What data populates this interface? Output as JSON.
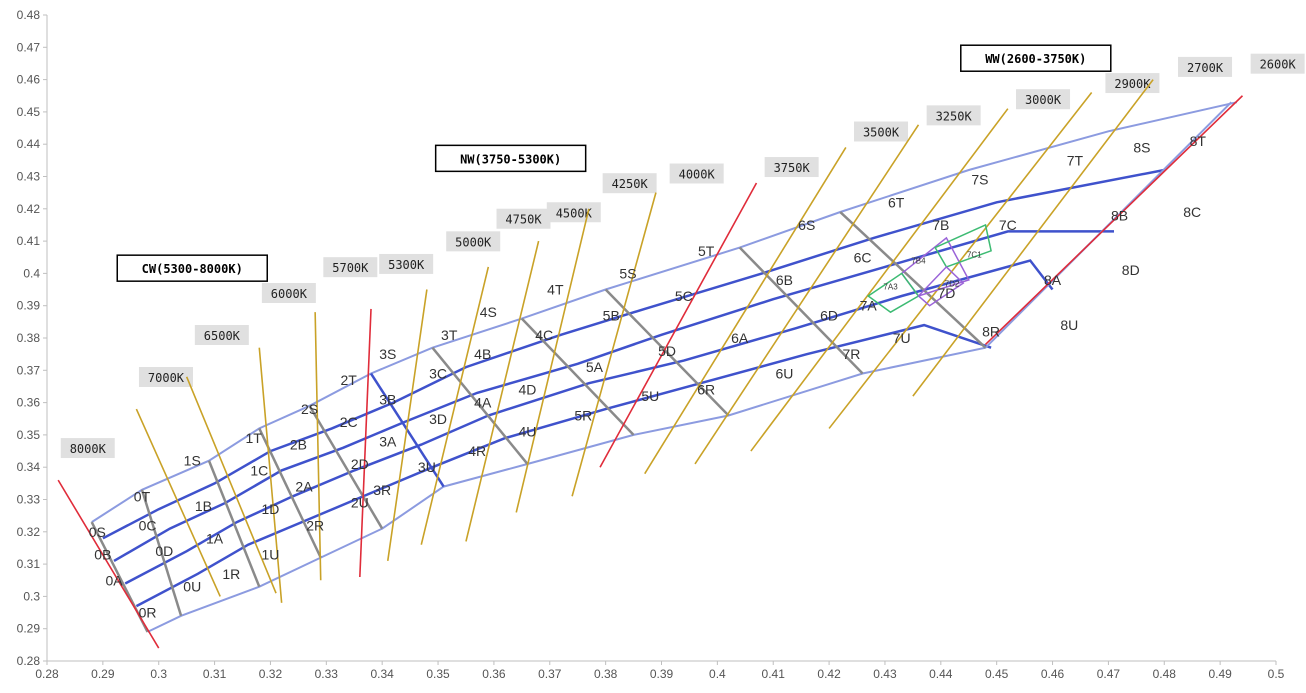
{
  "chart_data": {
    "type": "diagram-xy",
    "xlim": [
      0.28,
      0.5
    ],
    "ylim": [
      0.28,
      0.48
    ],
    "x_ticks": [
      "0.28",
      "0.29",
      "0.3",
      "0.31",
      "0.32",
      "0.33",
      "0.34",
      "0.35",
      "0.36",
      "0.37",
      "0.38",
      "0.39",
      "0.4",
      "0.41",
      "0.42",
      "0.43",
      "0.44",
      "0.45",
      "0.46",
      "0.47",
      "0.48",
      "0.49",
      "0.5"
    ],
    "y_ticks": [
      "0.28",
      "0.29",
      "0.3",
      "0.31",
      "0.32",
      "0.33",
      "0.34",
      "0.35",
      "0.36",
      "0.37",
      "0.38",
      "0.39",
      "0.4",
      "0.41",
      "0.42",
      "0.43",
      "0.44",
      "0.45",
      "0.46",
      "0.47",
      "0.48"
    ],
    "grid": false,
    "colors": {
      "boundary": "#8c9be0",
      "mid_curve": "#3f52cc",
      "cct_line": "#c9a227",
      "cct_red": "#e02c3a",
      "cct_purple": "#9a2c8e",
      "sub_bin_green": "#3dbb73",
      "sub_bin_purple": "#9a63d8",
      "divider_gray": "#8a8a8a",
      "label_bg": "#e0e0e0"
    },
    "loci": [
      {
        "role": "top",
        "points": [
          [
            0.288,
            0.323
          ],
          [
            0.297,
            0.333
          ],
          [
            0.309,
            0.342
          ],
          [
            0.318,
            0.352
          ],
          [
            0.327,
            0.359
          ],
          [
            0.338,
            0.369
          ],
          [
            0.349,
            0.377
          ],
          [
            0.365,
            0.386
          ],
          [
            0.38,
            0.395
          ],
          [
            0.404,
            0.408
          ],
          [
            0.422,
            0.419
          ],
          [
            0.445,
            0.432
          ],
          [
            0.47,
            0.444
          ],
          [
            0.493,
            0.453
          ]
        ]
      },
      {
        "role": "mid",
        "points": [
          [
            0.29,
            0.318
          ],
          [
            0.3,
            0.327
          ],
          [
            0.31,
            0.335
          ],
          [
            0.32,
            0.345
          ],
          [
            0.331,
            0.352
          ],
          [
            0.342,
            0.36
          ],
          [
            0.355,
            0.371
          ],
          [
            0.372,
            0.381
          ],
          [
            0.387,
            0.389
          ],
          [
            0.408,
            0.4
          ],
          [
            0.428,
            0.411
          ],
          [
            0.45,
            0.422
          ],
          [
            0.48,
            0.432
          ]
        ]
      },
      {
        "role": "mid",
        "points": [
          [
            0.292,
            0.311
          ],
          [
            0.302,
            0.321
          ],
          [
            0.312,
            0.329
          ],
          [
            0.322,
            0.339
          ],
          [
            0.333,
            0.346
          ],
          [
            0.344,
            0.354
          ],
          [
            0.357,
            0.363
          ],
          [
            0.375,
            0.372
          ],
          [
            0.39,
            0.381
          ],
          [
            0.41,
            0.392
          ],
          [
            0.43,
            0.402
          ],
          [
            0.452,
            0.413
          ],
          [
            0.471,
            0.413
          ]
        ]
      },
      {
        "role": "mid",
        "points": [
          [
            0.294,
            0.304
          ],
          [
            0.305,
            0.314
          ],
          [
            0.314,
            0.323
          ],
          [
            0.324,
            0.331
          ],
          [
            0.335,
            0.339
          ],
          [
            0.347,
            0.347
          ],
          [
            0.359,
            0.356
          ],
          [
            0.377,
            0.366
          ],
          [
            0.394,
            0.373
          ],
          [
            0.414,
            0.383
          ],
          [
            0.433,
            0.393
          ],
          [
            0.456,
            0.404
          ],
          [
            0.46,
            0.395
          ]
        ]
      },
      {
        "role": "mid",
        "points": [
          [
            0.296,
            0.297
          ],
          [
            0.307,
            0.307
          ],
          [
            0.316,
            0.316
          ],
          [
            0.327,
            0.324
          ],
          [
            0.338,
            0.332
          ],
          [
            0.349,
            0.34
          ],
          [
            0.362,
            0.349
          ],
          [
            0.38,
            0.358
          ],
          [
            0.397,
            0.366
          ],
          [
            0.416,
            0.375
          ],
          [
            0.437,
            0.384
          ],
          [
            0.449,
            0.377
          ]
        ]
      },
      {
        "role": "bottom",
        "points": [
          [
            0.298,
            0.289
          ],
          [
            0.304,
            0.294
          ],
          [
            0.318,
            0.303
          ],
          [
            0.329,
            0.312
          ],
          [
            0.34,
            0.321
          ],
          [
            0.351,
            0.334
          ],
          [
            0.366,
            0.341
          ],
          [
            0.385,
            0.35
          ],
          [
            0.402,
            0.356
          ],
          [
            0.426,
            0.369
          ],
          [
            0.448,
            0.377
          ],
          [
            0.492,
            0.453
          ]
        ]
      }
    ],
    "cct_lines": [
      {
        "label": "8000K",
        "color": "red",
        "from": [
          0.282,
          0.336
        ],
        "to": [
          0.3,
          0.284
        ],
        "label_at": [
          0.283,
          0.345
        ]
      },
      {
        "label": "7000K",
        "color": "gold",
        "from": [
          0.296,
          0.358
        ],
        "to": [
          0.311,
          0.3
        ],
        "label_at": [
          0.297,
          0.367
        ]
      },
      {
        "label": "6500K",
        "color": "gold",
        "from": [
          0.305,
          0.368
        ],
        "to": [
          0.321,
          0.301
        ],
        "label_at": [
          0.307,
          0.38
        ]
      },
      {
        "label": "6000K",
        "color": "gold",
        "from": [
          0.318,
          0.377
        ],
        "to": [
          0.322,
          0.298
        ],
        "label_at": [
          0.319,
          0.393
        ]
      },
      {
        "label": "5700K",
        "color": "gold",
        "from": [
          0.328,
          0.388
        ],
        "to": [
          0.329,
          0.305
        ],
        "label_at": [
          0.33,
          0.401
        ]
      },
      {
        "label": "5300K",
        "color": "red",
        "from": [
          0.338,
          0.389
        ],
        "to": [
          0.336,
          0.306
        ],
        "label_at": [
          0.34,
          0.402
        ]
      },
      {
        "label": "5000K",
        "color": "gold",
        "from": [
          0.348,
          0.395
        ],
        "to": [
          0.341,
          0.311
        ],
        "label_at": [
          0.352,
          0.409
        ]
      },
      {
        "label": "4750K",
        "color": "gold",
        "from": [
          0.359,
          0.402
        ],
        "to": [
          0.347,
          0.316
        ],
        "label_at": [
          0.361,
          0.416
        ]
      },
      {
        "label": "4500K",
        "color": "gold",
        "from": [
          0.368,
          0.41
        ],
        "to": [
          0.355,
          0.317
        ],
        "label_at": [
          0.37,
          0.418
        ]
      },
      {
        "label": "4250K",
        "color": "gold",
        "from": [
          0.377,
          0.42
        ],
        "to": [
          0.364,
          0.326
        ],
        "label_at": [
          0.38,
          0.427
        ]
      },
      {
        "label": "4000K",
        "color": "gold",
        "from": [
          0.389,
          0.425
        ],
        "to": [
          0.374,
          0.331
        ],
        "label_at": [
          0.392,
          0.43
        ]
      },
      {
        "label": "3750K",
        "color": "red",
        "from": [
          0.407,
          0.428
        ],
        "to": [
          0.379,
          0.34
        ],
        "label_at": [
          0.409,
          0.432
        ]
      },
      {
        "label": "3500K",
        "color": "gold",
        "from": [
          0.423,
          0.439
        ],
        "to": [
          0.387,
          0.338
        ],
        "label_at": [
          0.425,
          0.443
        ]
      },
      {
        "label": "3250K",
        "color": "gold",
        "from": [
          0.436,
          0.446
        ],
        "to": [
          0.396,
          0.341
        ],
        "label_at": [
          0.438,
          0.448
        ]
      },
      {
        "label": "3000K",
        "color": "gold",
        "from": [
          0.452,
          0.451
        ],
        "to": [
          0.406,
          0.345
        ],
        "label_at": [
          0.454,
          0.453
        ]
      },
      {
        "label": "2900K",
        "color": "gold",
        "from": [
          0.467,
          0.456
        ],
        "to": [
          0.42,
          0.352
        ],
        "label_at": [
          0.47,
          0.458
        ]
      },
      {
        "label": "2700K",
        "color": "gold",
        "from": [
          0.478,
          0.46
        ],
        "to": [
          0.435,
          0.362
        ],
        "label_at": [
          0.483,
          0.463
        ]
      },
      {
        "label": "2600K",
        "color": "red",
        "from": [
          0.494,
          0.455
        ],
        "to": [
          0.448,
          0.378
        ],
        "label_at": [
          0.496,
          0.464
        ]
      }
    ],
    "bins": [
      {
        "label": "0S",
        "x": 0.289,
        "y": 0.32
      },
      {
        "label": "0B",
        "x": 0.29,
        "y": 0.313
      },
      {
        "label": "0A",
        "x": 0.292,
        "y": 0.305
      },
      {
        "label": "0R",
        "x": 0.298,
        "y": 0.295
      },
      {
        "label": "0T",
        "x": 0.297,
        "y": 0.331
      },
      {
        "label": "0C",
        "x": 0.298,
        "y": 0.322
      },
      {
        "label": "0D",
        "x": 0.301,
        "y": 0.314
      },
      {
        "label": "0U",
        "x": 0.306,
        "y": 0.303
      },
      {
        "label": "1S",
        "x": 0.306,
        "y": 0.342
      },
      {
        "label": "1B",
        "x": 0.308,
        "y": 0.328
      },
      {
        "label": "1A",
        "x": 0.31,
        "y": 0.318
      },
      {
        "label": "1R",
        "x": 0.313,
        "y": 0.307
      },
      {
        "label": "1T",
        "x": 0.317,
        "y": 0.349
      },
      {
        "label": "1C",
        "x": 0.318,
        "y": 0.339
      },
      {
        "label": "1D",
        "x": 0.32,
        "y": 0.327
      },
      {
        "label": "1U",
        "x": 0.32,
        "y": 0.313
      },
      {
        "label": "2S",
        "x": 0.327,
        "y": 0.358
      },
      {
        "label": "2B",
        "x": 0.325,
        "y": 0.347
      },
      {
        "label": "2A",
        "x": 0.326,
        "y": 0.334
      },
      {
        "label": "2R",
        "x": 0.328,
        "y": 0.322
      },
      {
        "label": "2T",
        "x": 0.334,
        "y": 0.367
      },
      {
        "label": "2C",
        "x": 0.334,
        "y": 0.354
      },
      {
        "label": "2D",
        "x": 0.336,
        "y": 0.341
      },
      {
        "label": "2U",
        "x": 0.336,
        "y": 0.329
      },
      {
        "label": "3S",
        "x": 0.341,
        "y": 0.375
      },
      {
        "label": "3B",
        "x": 0.341,
        "y": 0.361
      },
      {
        "label": "3A",
        "x": 0.341,
        "y": 0.348
      },
      {
        "label": "3R",
        "x": 0.34,
        "y": 0.333
      },
      {
        "label": "3T",
        "x": 0.352,
        "y": 0.381
      },
      {
        "label": "3C",
        "x": 0.35,
        "y": 0.369
      },
      {
        "label": "3D",
        "x": 0.35,
        "y": 0.355
      },
      {
        "label": "3U",
        "x": 0.348,
        "y": 0.34
      },
      {
        "label": "4S",
        "x": 0.359,
        "y": 0.388
      },
      {
        "label": "4B",
        "x": 0.358,
        "y": 0.375
      },
      {
        "label": "4A",
        "x": 0.358,
        "y": 0.36
      },
      {
        "label": "4R",
        "x": 0.357,
        "y": 0.345
      },
      {
        "label": "4T",
        "x": 0.371,
        "y": 0.395
      },
      {
        "label": "4C",
        "x": 0.369,
        "y": 0.381
      },
      {
        "label": "4D",
        "x": 0.366,
        "y": 0.364
      },
      {
        "label": "4U",
        "x": 0.366,
        "y": 0.351
      },
      {
        "label": "5S",
        "x": 0.384,
        "y": 0.4
      },
      {
        "label": "5B",
        "x": 0.381,
        "y": 0.387
      },
      {
        "label": "5A",
        "x": 0.378,
        "y": 0.371
      },
      {
        "label": "5R",
        "x": 0.376,
        "y": 0.356
      },
      {
        "label": "5T",
        "x": 0.398,
        "y": 0.407
      },
      {
        "label": "5C",
        "x": 0.394,
        "y": 0.393
      },
      {
        "label": "5D",
        "x": 0.391,
        "y": 0.376
      },
      {
        "label": "5U",
        "x": 0.388,
        "y": 0.362
      },
      {
        "label": "6S",
        "x": 0.416,
        "y": 0.415
      },
      {
        "label": "6B",
        "x": 0.412,
        "y": 0.398
      },
      {
        "label": "6A",
        "x": 0.404,
        "y": 0.38
      },
      {
        "label": "6R",
        "x": 0.398,
        "y": 0.364
      },
      {
        "label": "6T",
        "x": 0.432,
        "y": 0.422
      },
      {
        "label": "6C",
        "x": 0.426,
        "y": 0.405
      },
      {
        "label": "6D",
        "x": 0.42,
        "y": 0.387
      },
      {
        "label": "6U",
        "x": 0.412,
        "y": 0.369
      },
      {
        "label": "7S",
        "x": 0.447,
        "y": 0.429
      },
      {
        "label": "7B",
        "x": 0.44,
        "y": 0.415
      },
      {
        "label": "7A",
        "x": 0.427,
        "y": 0.39
      },
      {
        "label": "7R",
        "x": 0.424,
        "y": 0.375
      },
      {
        "label": "7T",
        "x": 0.464,
        "y": 0.435
      },
      {
        "label": "7C",
        "x": 0.452,
        "y": 0.415
      },
      {
        "label": "7D",
        "x": 0.441,
        "y": 0.394
      },
      {
        "label": "7U",
        "x": 0.433,
        "y": 0.38
      },
      {
        "label": "8S",
        "x": 0.476,
        "y": 0.439
      },
      {
        "label": "8B",
        "x": 0.472,
        "y": 0.418
      },
      {
        "label": "8A",
        "x": 0.46,
        "y": 0.398
      },
      {
        "label": "8R",
        "x": 0.449,
        "y": 0.382
      },
      {
        "label": "8T",
        "x": 0.486,
        "y": 0.441
      },
      {
        "label": "8C",
        "x": 0.485,
        "y": 0.419
      },
      {
        "label": "8D",
        "x": 0.474,
        "y": 0.401
      },
      {
        "label": "8U",
        "x": 0.463,
        "y": 0.384
      }
    ],
    "sub_bins": [
      {
        "label": "7B4",
        "x": 0.436,
        "y": 0.403
      },
      {
        "label": "7C1",
        "x": 0.446,
        "y": 0.405
      },
      {
        "label": "7A3",
        "x": 0.431,
        "y": 0.395
      },
      {
        "label": "7D2",
        "x": 0.442,
        "y": 0.396
      }
    ],
    "sub_bin_shapes": [
      {
        "color": "purple",
        "points": [
          [
            0.433,
            0.4
          ],
          [
            0.441,
            0.411
          ],
          [
            0.445,
            0.398
          ],
          [
            0.436,
            0.393
          ]
        ]
      },
      {
        "color": "green",
        "points": [
          [
            0.439,
            0.408
          ],
          [
            0.448,
            0.415
          ],
          [
            0.449,
            0.407
          ],
          [
            0.441,
            0.402
          ]
        ]
      },
      {
        "color": "green",
        "points": [
          [
            0.427,
            0.393
          ],
          [
            0.433,
            0.4
          ],
          [
            0.436,
            0.393
          ],
          [
            0.431,
            0.388
          ]
        ]
      },
      {
        "color": "purple",
        "points": [
          [
            0.436,
            0.393
          ],
          [
            0.441,
            0.402
          ],
          [
            0.444,
            0.397
          ],
          [
            0.438,
            0.39
          ]
        ]
      }
    ],
    "groups": [
      {
        "label": "CW(5300-8000K)",
        "x": 0.306,
        "y": 0.401
      },
      {
        "label": "NW(3750-5300K)",
        "x": 0.363,
        "y": 0.435
      },
      {
        "label": "WW(2600-3750K)",
        "x": 0.457,
        "y": 0.466
      }
    ]
  }
}
